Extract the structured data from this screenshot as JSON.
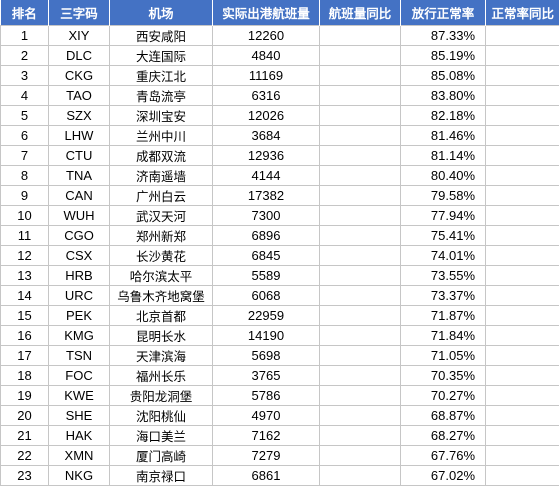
{
  "table": {
    "headers": [
      "排名",
      "三字码",
      "机场",
      "实际出港航班量",
      "航班量同比",
      "放行正常率",
      "正常率同比"
    ],
    "rows": [
      {
        "rank": "1",
        "code": "XIY",
        "airport": "西安咸阳",
        "flights": "12260",
        "flights_yoy": "",
        "on_time_rate": "87.33%",
        "rate_yoy": ""
      },
      {
        "rank": "2",
        "code": "DLC",
        "airport": "大连国际",
        "flights": "4840",
        "flights_yoy": "",
        "on_time_rate": "85.19%",
        "rate_yoy": ""
      },
      {
        "rank": "3",
        "code": "CKG",
        "airport": "重庆江北",
        "flights": "11169",
        "flights_yoy": "",
        "on_time_rate": "85.08%",
        "rate_yoy": ""
      },
      {
        "rank": "4",
        "code": "TAO",
        "airport": "青岛流亭",
        "flights": "6316",
        "flights_yoy": "",
        "on_time_rate": "83.80%",
        "rate_yoy": ""
      },
      {
        "rank": "5",
        "code": "SZX",
        "airport": "深圳宝安",
        "flights": "12026",
        "flights_yoy": "",
        "on_time_rate": "82.18%",
        "rate_yoy": ""
      },
      {
        "rank": "6",
        "code": "LHW",
        "airport": "兰州中川",
        "flights": "3684",
        "flights_yoy": "",
        "on_time_rate": "81.46%",
        "rate_yoy": ""
      },
      {
        "rank": "7",
        "code": "CTU",
        "airport": "成都双流",
        "flights": "12936",
        "flights_yoy": "",
        "on_time_rate": "81.14%",
        "rate_yoy": ""
      },
      {
        "rank": "8",
        "code": "TNA",
        "airport": "济南遥墙",
        "flights": "4144",
        "flights_yoy": "",
        "on_time_rate": "80.40%",
        "rate_yoy": ""
      },
      {
        "rank": "9",
        "code": "CAN",
        "airport": "广州白云",
        "flights": "17382",
        "flights_yoy": "",
        "on_time_rate": "79.58%",
        "rate_yoy": ""
      },
      {
        "rank": "10",
        "code": "WUH",
        "airport": "武汉天河",
        "flights": "7300",
        "flights_yoy": "",
        "on_time_rate": "77.94%",
        "rate_yoy": ""
      },
      {
        "rank": "11",
        "code": "CGO",
        "airport": "郑州新郑",
        "flights": "6896",
        "flights_yoy": "",
        "on_time_rate": "75.41%",
        "rate_yoy": ""
      },
      {
        "rank": "12",
        "code": "CSX",
        "airport": "长沙黄花",
        "flights": "6845",
        "flights_yoy": "",
        "on_time_rate": "74.01%",
        "rate_yoy": ""
      },
      {
        "rank": "13",
        "code": "HRB",
        "airport": "哈尔滨太平",
        "flights": "5589",
        "flights_yoy": "",
        "on_time_rate": "73.55%",
        "rate_yoy": ""
      },
      {
        "rank": "14",
        "code": "URC",
        "airport": "乌鲁木齐地窝堡",
        "flights": "6068",
        "flights_yoy": "",
        "on_time_rate": "73.37%",
        "rate_yoy": ""
      },
      {
        "rank": "15",
        "code": "PEK",
        "airport": "北京首都",
        "flights": "22959",
        "flights_yoy": "",
        "on_time_rate": "71.87%",
        "rate_yoy": ""
      },
      {
        "rank": "16",
        "code": "KMG",
        "airport": "昆明长水",
        "flights": "14190",
        "flights_yoy": "",
        "on_time_rate": "71.84%",
        "rate_yoy": ""
      },
      {
        "rank": "17",
        "code": "TSN",
        "airport": "天津滨海",
        "flights": "5698",
        "flights_yoy": "",
        "on_time_rate": "71.05%",
        "rate_yoy": ""
      },
      {
        "rank": "18",
        "code": "FOC",
        "airport": "福州长乐",
        "flights": "3765",
        "flights_yoy": "",
        "on_time_rate": "70.35%",
        "rate_yoy": ""
      },
      {
        "rank": "19",
        "code": "KWE",
        "airport": "贵阳龙洞堡",
        "flights": "5786",
        "flights_yoy": "",
        "on_time_rate": "70.27%",
        "rate_yoy": ""
      },
      {
        "rank": "20",
        "code": "SHE",
        "airport": "沈阳桃仙",
        "flights": "4970",
        "flights_yoy": "",
        "on_time_rate": "68.87%",
        "rate_yoy": ""
      },
      {
        "rank": "21",
        "code": "HAK",
        "airport": "海口美兰",
        "flights": "7162",
        "flights_yoy": "",
        "on_time_rate": "68.27%",
        "rate_yoy": ""
      },
      {
        "rank": "22",
        "code": "XMN",
        "airport": "厦门高崎",
        "flights": "7279",
        "flights_yoy": "",
        "on_time_rate": "67.76%",
        "rate_yoy": ""
      },
      {
        "rank": "23",
        "code": "NKG",
        "airport": "南京禄口",
        "flights": "6861",
        "flights_yoy": "",
        "on_time_rate": "67.02%",
        "rate_yoy": ""
      }
    ]
  },
  "colors": {
    "header_bg": "#4472c4",
    "header_text": "#ffffff",
    "grid": "#c6c6c6"
  }
}
